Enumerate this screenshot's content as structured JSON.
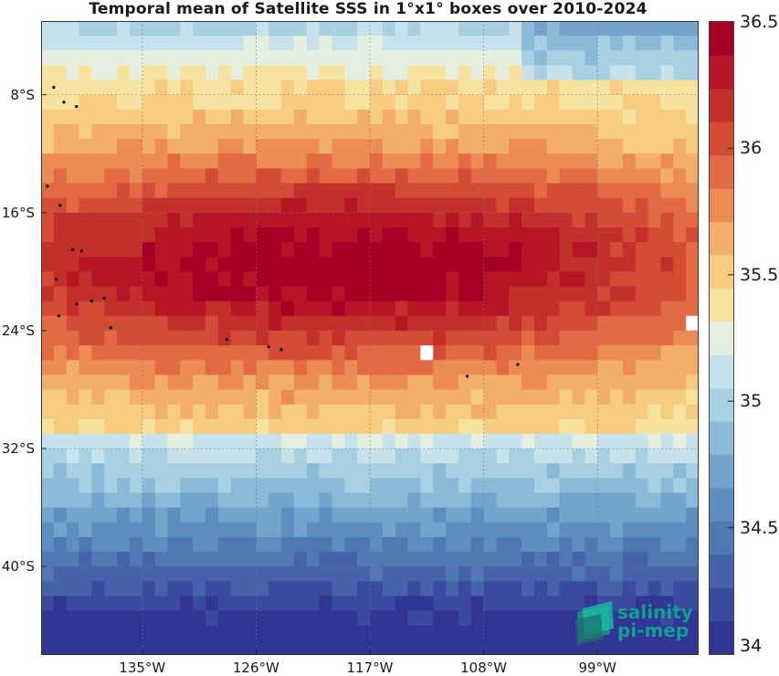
{
  "title": "Temporal mean of Satellite SSS in 1°x1° boxes over 2010-2024",
  "map": {
    "lon_range": [
      -143,
      -91
    ],
    "lat_range": [
      -46,
      -3
    ],
    "lat_ticks": [
      {
        "value": -8,
        "label": "8°S"
      },
      {
        "value": -16,
        "label": "16°S"
      },
      {
        "value": -24,
        "label": "24°S"
      },
      {
        "value": -32,
        "label": "32°S"
      },
      {
        "value": -40,
        "label": "40°S"
      }
    ],
    "lon_ticks": [
      {
        "value": -135,
        "label": "135°W"
      },
      {
        "value": -126,
        "label": "126°W"
      },
      {
        "value": -117,
        "label": "117°W"
      },
      {
        "value": -108,
        "label": "108°W"
      },
      {
        "value": -99,
        "label": "99°W"
      }
    ],
    "grid": true,
    "land_color": "#000000",
    "missing_color": "#ffffff"
  },
  "colorbar": {
    "range": [
      34,
      36.5
    ],
    "ticks": [
      {
        "value": 36.5,
        "label": "36.5"
      },
      {
        "value": 36,
        "label": "36"
      },
      {
        "value": 35.5,
        "label": "35.5"
      },
      {
        "value": 35,
        "label": "35"
      },
      {
        "value": 34.5,
        "label": "34.5"
      },
      {
        "value": 34,
        "label": "34"
      }
    ],
    "colors": [
      "#313695",
      "#3a4a9f",
      "#4562aa",
      "#5079b4",
      "#5e8dbf",
      "#72a4cc",
      "#8abad8",
      "#a8d0e3",
      "#c6e2ea",
      "#e4efe0",
      "#f8e2a0",
      "#f6cd80",
      "#f3af6a",
      "#ec8c55",
      "#e26a45",
      "#d44b36",
      "#c3302c",
      "#b61526",
      "#a50026"
    ]
  },
  "logo": {
    "line1": "salinity",
    "line2": "pi-mep"
  }
}
